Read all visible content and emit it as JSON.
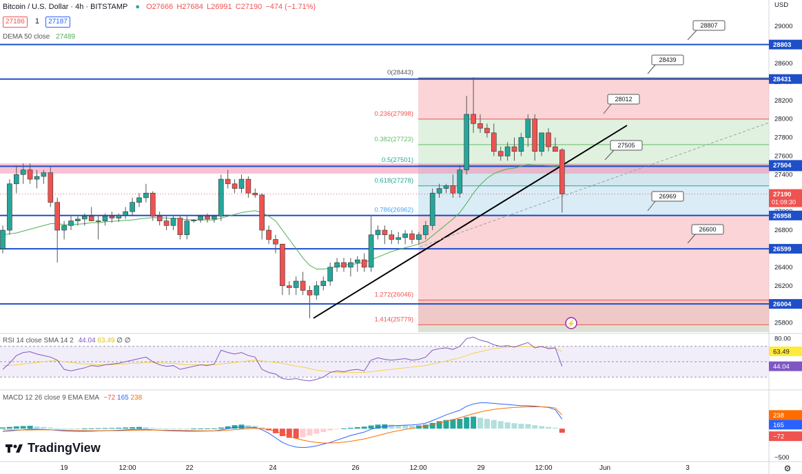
{
  "header": {
    "title": "Bitcoin / U.S. Dollar · 4h · BITSTAMP",
    "ohlc": {
      "o": "O27666",
      "h": "H27684",
      "l": "L26991",
      "c": "C27190",
      "change": "−474 (−1.71%)"
    },
    "bid": "27186",
    "spread": "1",
    "ask": "27187",
    "dema_label": "DEMA 50 close",
    "dema_value": "27489"
  },
  "rsi_header": {
    "label": "RSI 14 close SMA 14 2",
    "v1": "44.04",
    "v2": "63.49",
    "v3": "∅",
    "v4": "∅"
  },
  "macd_header": {
    "label": "MACD 12 26 close 9 EMA EMA",
    "v1": "−72",
    "v2": "165",
    "v3": "238"
  },
  "axis_currency": "USD",
  "logo_text": "TradingView",
  "countdown": "01:09:30",
  "colors": {
    "up": "#26a69a",
    "down": "#ef5350",
    "level": "#1e4fc9",
    "dema": "#4caf50"
  },
  "chart_data": {
    "type": "candlestick",
    "y_axis_ticks": [
      "29000",
      "28800",
      "28600",
      "28400",
      "28200",
      "28000",
      "27800",
      "27600",
      "27400",
      "27200",
      "27000",
      "26800",
      "26600",
      "26400",
      "26200",
      "26000",
      "25800"
    ],
    "x_axis_ticks": [
      "19",
      "12:00",
      "22",
      "24",
      "26",
      "12:00",
      "29",
      "12:00",
      "Jun",
      "3"
    ],
    "ylim": [
      25700,
      29150
    ],
    "candles": [
      [
        26600,
        26850,
        26550,
        26800
      ],
      [
        26800,
        27350,
        26750,
        27300
      ],
      [
        27300,
        27500,
        27200,
        27400
      ],
      [
        27400,
        27520,
        27300,
        27450
      ],
      [
        27450,
        27520,
        27300,
        27350
      ],
      [
        27350,
        27450,
        27250,
        27380
      ],
      [
        27380,
        27450,
        27300,
        27420
      ],
      [
        27420,
        27480,
        27050,
        27100
      ],
      [
        27100,
        27150,
        26450,
        26800
      ],
      [
        26800,
        26900,
        26700,
        26850
      ],
      [
        26850,
        26950,
        26800,
        26900
      ],
      [
        26900,
        26950,
        26850,
        26920
      ],
      [
        26920,
        26980,
        26850,
        26950
      ],
      [
        26950,
        27050,
        26900,
        26900
      ],
      [
        26900,
        26950,
        26700,
        26900
      ],
      [
        26900,
        26980,
        26850,
        26950
      ],
      [
        26950,
        27000,
        26880,
        26930
      ],
      [
        26930,
        26980,
        26890,
        26960
      ],
      [
        26960,
        27050,
        26920,
        27000
      ],
      [
        27000,
        27150,
        26950,
        27100
      ],
      [
        27100,
        27200,
        27050,
        27150
      ],
      [
        27150,
        27300,
        27100,
        27200
      ],
      [
        27200,
        27220,
        26900,
        26950
      ],
      [
        26950,
        27000,
        26850,
        26900
      ],
      [
        26900,
        26950,
        26800,
        26850
      ],
      [
        26850,
        26950,
        26800,
        26930
      ],
      [
        26930,
        26960,
        26700,
        26750
      ],
      [
        26750,
        26950,
        26700,
        26900
      ],
      [
        26900,
        26920,
        26880,
        26910
      ],
      [
        26910,
        26960,
        26880,
        26950
      ],
      [
        26950,
        26980,
        26880,
        26920
      ],
      [
        26920,
        26960,
        26880,
        26950
      ],
      [
        26950,
        27400,
        26900,
        27350
      ],
      [
        27350,
        27450,
        27250,
        27300
      ],
      [
        27300,
        27350,
        27200,
        27250
      ],
      [
        27250,
        27400,
        27200,
        27350
      ],
      [
        27350,
        27380,
        27150,
        27200
      ],
      [
        27200,
        27250,
        27150,
        27180
      ],
      [
        27180,
        27200,
        26700,
        26800
      ],
      [
        26800,
        26850,
        26650,
        26700
      ],
      [
        26700,
        26750,
        26550,
        26650
      ],
      [
        26650,
        26650,
        26100,
        26200
      ],
      [
        26200,
        26250,
        26100,
        26180
      ],
      [
        26180,
        26300,
        26100,
        26250
      ],
      [
        26250,
        26350,
        26100,
        26150
      ],
      [
        26150,
        26200,
        25850,
        26100
      ],
      [
        26100,
        26250,
        26050,
        26200
      ],
      [
        26200,
        26300,
        26150,
        26250
      ],
      [
        26250,
        26450,
        26200,
        26400
      ],
      [
        26400,
        26500,
        26350,
        26450
      ],
      [
        26450,
        26500,
        26350,
        26400
      ],
      [
        26400,
        26500,
        26300,
        26450
      ],
      [
        26450,
        26520,
        26350,
        26480
      ],
      [
        26480,
        26550,
        26350,
        26400
      ],
      [
        26400,
        26950,
        26350,
        26750
      ],
      [
        26750,
        26850,
        26700,
        26800
      ],
      [
        26800,
        26850,
        26650,
        26750
      ],
      [
        26750,
        26800,
        26650,
        26700
      ],
      [
        26700,
        26780,
        26650,
        26720
      ],
      [
        26720,
        26800,
        26650,
        26760
      ],
      [
        26760,
        26800,
        26650,
        26700
      ],
      [
        26700,
        26780,
        26650,
        26750
      ],
      [
        26750,
        26900,
        26700,
        26850
      ],
      [
        26850,
        27250,
        26800,
        27200
      ],
      [
        27200,
        27300,
        27150,
        27250
      ],
      [
        27250,
        27300,
        27200,
        27280
      ],
      [
        27280,
        27400,
        27150,
        27200
      ],
      [
        27200,
        27500,
        27150,
        27450
      ],
      [
        27450,
        28250,
        27400,
        28050
      ],
      [
        28050,
        28450,
        27850,
        27950
      ],
      [
        27950,
        28050,
        27850,
        27900
      ],
      [
        27900,
        27950,
        27800,
        27850
      ],
      [
        27850,
        27950,
        27600,
        27650
      ],
      [
        27650,
        27700,
        27550,
        27600
      ],
      [
        27600,
        27750,
        27550,
        27700
      ],
      [
        27700,
        27800,
        27550,
        27650
      ],
      [
        27650,
        27850,
        27600,
        27800
      ],
      [
        27800,
        28050,
        27700,
        28000
      ],
      [
        28000,
        28050,
        27550,
        27650
      ],
      [
        27650,
        27850,
        27600,
        27850
      ],
      [
        27850,
        27900,
        27650,
        27700
      ],
      [
        27700,
        27800,
        27650,
        27650
      ],
      [
        27666,
        27684,
        26991,
        27190
      ]
    ],
    "dema_50": [
      26750,
      26760,
      26770,
      26790,
      26810,
      26830,
      26850,
      26870,
      26870,
      26860,
      26860,
      26865,
      26870,
      26880,
      26880,
      26890,
      26895,
      26900,
      26905,
      26910,
      26920,
      26930,
      26935,
      26935,
      26930,
      26925,
      26920,
      26915,
      26910,
      26910,
      26910,
      26910,
      26930,
      26950,
      26970,
      26990,
      27000,
      27010,
      26990,
      26950,
      26900,
      26800,
      26700,
      26600,
      26500,
      26420,
      26380,
      26380,
      26390,
      26410,
      26420,
      26430,
      26440,
      26450,
      26480,
      26510,
      26540,
      26570,
      26590,
      26610,
      26630,
      26650,
      26680,
      26740,
      26800,
      26860,
      26920,
      26990,
      27090,
      27200,
      27290,
      27360,
      27410,
      27440,
      27460,
      27470,
      27490,
      27510,
      27500,
      27500,
      27495,
      27490,
      27489
    ],
    "levels": [
      {
        "price": 28803,
        "label": "28803",
        "callout": "28807"
      },
      {
        "price": 28431,
        "label": "28431",
        "callout": "28439"
      },
      {
        "price": 27489,
        "label": "27489",
        "callout": "27505"
      },
      {
        "price": 26958,
        "label": "26958",
        "callout": "26969"
      },
      {
        "price": 26599,
        "label": "26599",
        "callout": "26600"
      },
      {
        "price": 26004,
        "label": "26004",
        "callout": null
      }
    ],
    "extra_callout": {
      "label": "28012",
      "price": 28000
    },
    "axis_badges": [
      {
        "label": "27504",
        "price": 27504
      },
      {
        "label": "27190",
        "price": 27190
      }
    ],
    "fib": [
      {
        "ratio": "0",
        "price": 28443,
        "text": "0(28443)"
      },
      {
        "ratio": "0.236",
        "price": 27998,
        "text": "0.236(27998)"
      },
      {
        "ratio": "0.382",
        "price": 27723,
        "text": "0.382(27723)"
      },
      {
        "ratio": "0.5",
        "price": 27501,
        "text": "0.5(27501)"
      },
      {
        "ratio": "0.618",
        "price": 27278,
        "text": "0.618(27278)"
      },
      {
        "ratio": "0.786",
        "price": 26962,
        "text": "0.786(26962)"
      },
      {
        "ratio": "1.272",
        "price": 26046,
        "text": "1.272(26046)"
      },
      {
        "ratio": "1.414",
        "price": 25779,
        "text": "1.414(25779)"
      }
    ],
    "rsi": {
      "ticks": [
        "80.00"
      ],
      "ylim": [
        15,
        85
      ],
      "badges": [
        "63.49",
        "44.04"
      ],
      "rsi_values": [
        40,
        48,
        58,
        62,
        63,
        60,
        58,
        56,
        52,
        40,
        38,
        40,
        42,
        45,
        44,
        46,
        47,
        48,
        50,
        52,
        54,
        56,
        50,
        46,
        44,
        45,
        40,
        42,
        44,
        46,
        45,
        47,
        65,
        62,
        60,
        62,
        58,
        56,
        40,
        36,
        34,
        28,
        27,
        28,
        26,
        25,
        27,
        30,
        36,
        38,
        37,
        39,
        40,
        38,
        52,
        55,
        53,
        52,
        53,
        54,
        52,
        53,
        56,
        65,
        67,
        68,
        66,
        70,
        80,
        82,
        78,
        76,
        72,
        70,
        71,
        69,
        72,
        75,
        68,
        70,
        67,
        68,
        44
      ],
      "sma_values": [
        45,
        45,
        46,
        47,
        48,
        49,
        50,
        51,
        51,
        50,
        49,
        48,
        47,
        47,
        46,
        46,
        46,
        47,
        47,
        48,
        48,
        49,
        49,
        49,
        48,
        48,
        47,
        46,
        46,
        46,
        46,
        46,
        47,
        48,
        49,
        50,
        51,
        52,
        51,
        50,
        49,
        48,
        46,
        44,
        43,
        41,
        39,
        38,
        37,
        36,
        36,
        36,
        36,
        36,
        37,
        38,
        39,
        40,
        41,
        42,
        43,
        44,
        45,
        47,
        49,
        51,
        53,
        55,
        58,
        61,
        63,
        65,
        67,
        68,
        69,
        70,
        70,
        70,
        70,
        69,
        69,
        67,
        63.49
      ]
    },
    "macd": {
      "ticks": [
        "−500"
      ],
      "ylim": [
        -550,
        650
      ],
      "badges": [
        "238",
        "165",
        "−72"
      ],
      "hist": [
        20,
        30,
        40,
        45,
        50,
        40,
        30,
        20,
        10,
        5,
        3,
        2,
        4,
        6,
        8,
        10,
        12,
        15,
        20,
        25,
        30,
        25,
        15,
        10,
        5,
        3,
        2,
        1,
        2,
        3,
        4,
        5,
        20,
        40,
        60,
        70,
        60,
        50,
        20,
        -30,
        -80,
        -130,
        -160,
        -170,
        -150,
        -120,
        -90,
        -60,
        -30,
        -10,
        5,
        15,
        25,
        35,
        55,
        70,
        75,
        70,
        60,
        55,
        50,
        55,
        70,
        100,
        130,
        150,
        160,
        170,
        200,
        210,
        190,
        170,
        150,
        130,
        110,
        95,
        85,
        80,
        60,
        45,
        30,
        15,
        -72
      ],
      "macd_line": [
        -50,
        -40,
        -30,
        -20,
        -10,
        -10,
        -15,
        -20,
        -30,
        -40,
        -45,
        -48,
        -46,
        -44,
        -40,
        -36,
        -32,
        -28,
        -22,
        -15,
        -10,
        -12,
        -20,
        -28,
        -34,
        -38,
        -42,
        -44,
        -44,
        -43,
        -42,
        -40,
        -20,
        0,
        20,
        30,
        25,
        20,
        -20,
        -80,
        -160,
        -240,
        -290,
        -320,
        -330,
        -320,
        -300,
        -270,
        -240,
        -200,
        -160,
        -120,
        -90,
        -60,
        -10,
        20,
        40,
        50,
        55,
        60,
        65,
        75,
        95,
        140,
        190,
        240,
        280,
        320,
        390,
        430,
        450,
        450,
        440,
        430,
        420,
        410,
        400,
        400,
        390,
        380,
        370,
        330,
        165
      ],
      "signal_line": [
        -20,
        -22,
        -24,
        -24,
        -23,
        -21,
        -20,
        -20,
        -22,
        -25,
        -28,
        -31,
        -34,
        -36,
        -37,
        -37,
        -36,
        -35,
        -33,
        -30,
        -27,
        -25,
        -25,
        -26,
        -27,
        -29,
        -31,
        -33,
        -35,
        -37,
        -38,
        -39,
        -35,
        -28,
        -18,
        -8,
        0,
        5,
        0,
        -15,
        -45,
        -85,
        -130,
        -170,
        -200,
        -225,
        -240,
        -250,
        -250,
        -245,
        -235,
        -220,
        -200,
        -180,
        -150,
        -120,
        -90,
        -60,
        -35,
        -15,
        5,
        25,
        45,
        70,
        100,
        130,
        160,
        190,
        225,
        260,
        290,
        315,
        335,
        350,
        360,
        370,
        375,
        380,
        380,
        380,
        375,
        360,
        238
      ]
    }
  }
}
